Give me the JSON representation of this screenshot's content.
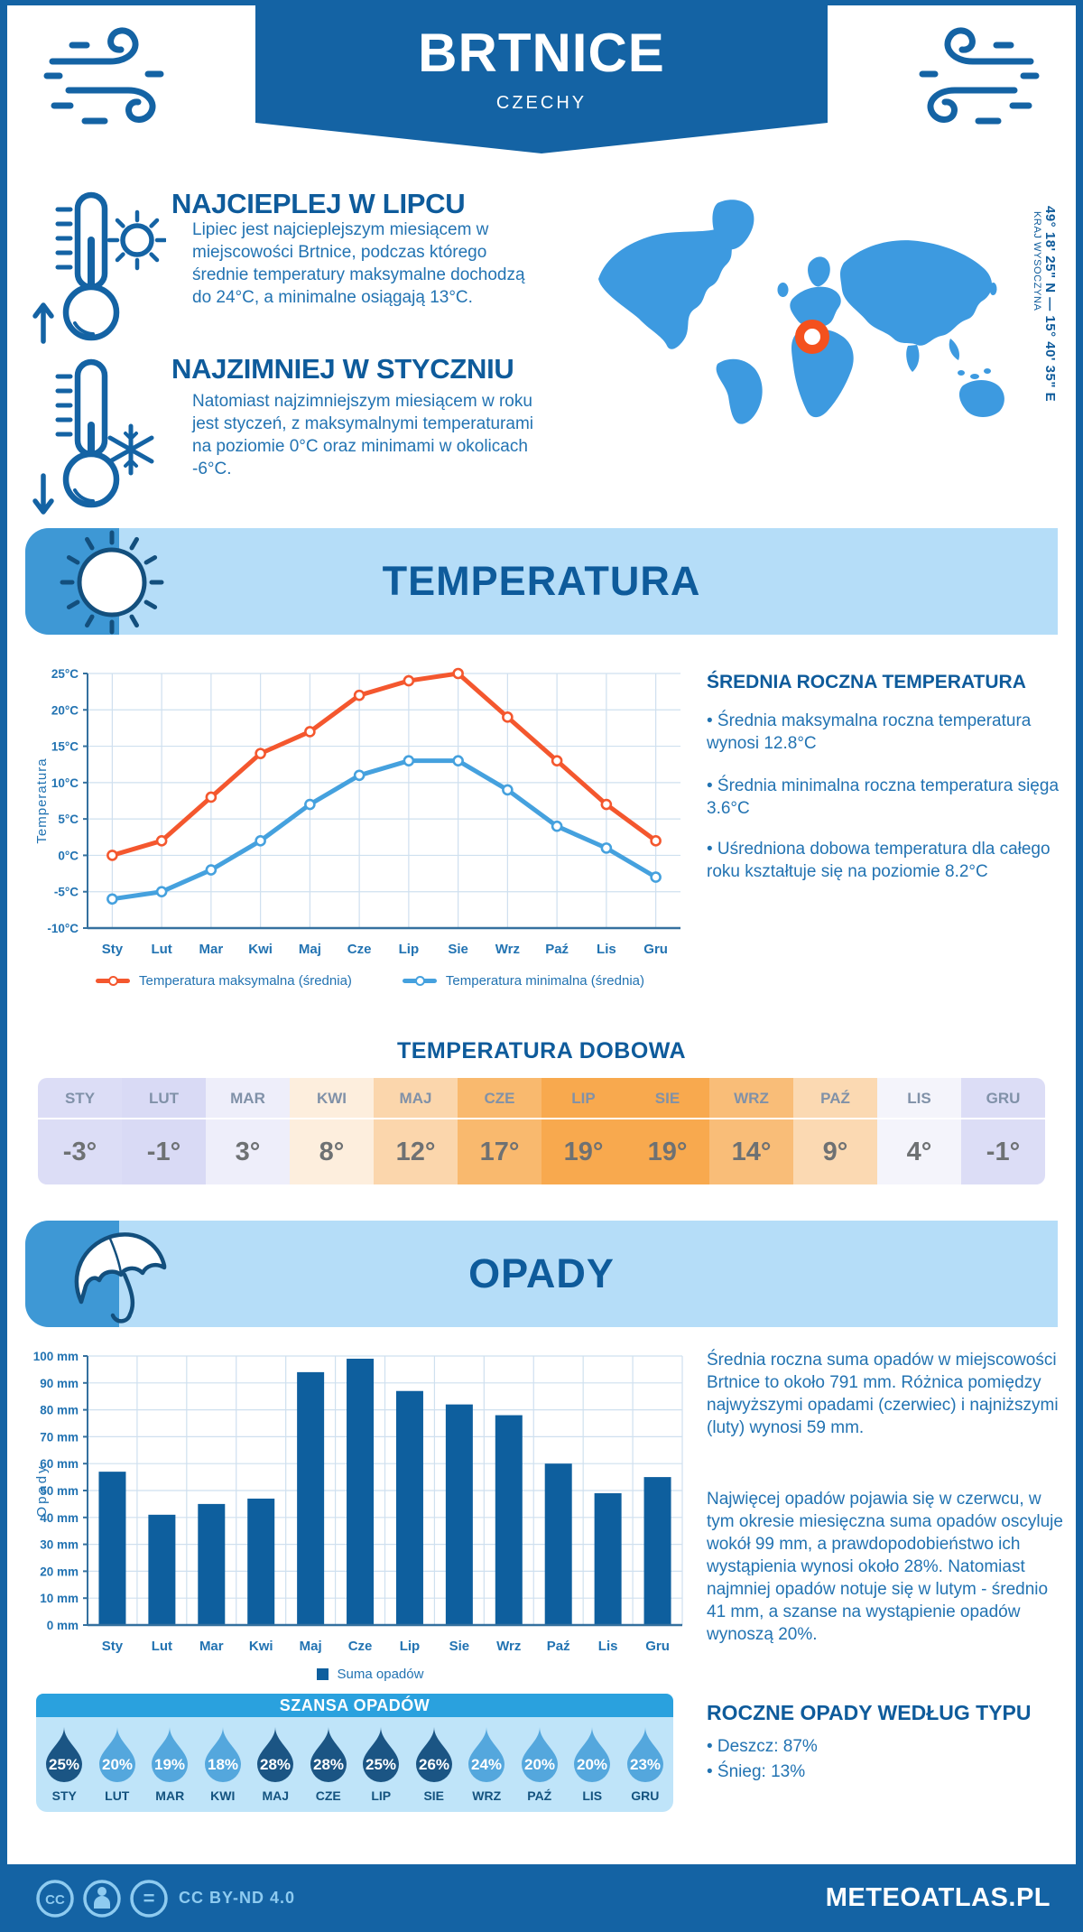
{
  "header": {
    "city": "BRTNICE",
    "country": "CZECHY",
    "coordinates": "49° 18' 25\" N — 15° 40' 35\" E",
    "region": "KRAJ WYSOCZYNA"
  },
  "warmest": {
    "title": "NAJCIEPLEJ W LIPCU",
    "text": "Lipiec jest najcieplejszym miesiącem w miejscowości Brtnice, podczas którego średnie temperatury maksymalne dochodzą do 24°C, a minimalne osiągają 13°C."
  },
  "coldest": {
    "title": "NAJZIMNIEJ W STYCZNIU",
    "text": "Natomiast najzimniejszym miesiącem w roku jest styczeń, z maksymalnymi temperaturami na poziomie 0°C oraz minimami w okolicach -6°C."
  },
  "temperature_section": {
    "banner": "TEMPERATURA",
    "panel_title": "ŚREDNIA ROCZNA TEMPERATURA",
    "bullets": [
      "• Średnia maksymalna roczna temperatura wynosi 12.8°C",
      "• Średnia minimalna roczna temperatura sięga 3.6°C",
      "• Uśredniona dobowa temperatura dla całego roku kształtuje się na poziomie 8.2°C"
    ],
    "daily_title": "TEMPERATURA DOBOWA"
  },
  "chart_data": [
    {
      "type": "line",
      "categories": [
        "Sty",
        "Lut",
        "Mar",
        "Kwi",
        "Maj",
        "Cze",
        "Lip",
        "Sie",
        "Wrz",
        "Paź",
        "Lis",
        "Gru"
      ],
      "series": [
        {
          "name": "Temperatura maksymalna (średnia)",
          "color": "#f4572e",
          "values": [
            0,
            2,
            8,
            14,
            17,
            22,
            24,
            25,
            19,
            13,
            7,
            2
          ]
        },
        {
          "name": "Temperatura minimalna (średnia)",
          "color": "#45a1de",
          "values": [
            -6,
            -5,
            -2,
            2,
            7,
            11,
            13,
            13,
            9,
            4,
            1,
            -3
          ]
        }
      ],
      "ylabel": "Temperatura",
      "ylim": [
        -10,
        25
      ],
      "ytick_step": 5,
      "ytick_suffix": "°C",
      "grid": true,
      "legend_position": "bottom"
    },
    {
      "type": "bar",
      "categories": [
        "Sty",
        "Lut",
        "Mar",
        "Kwi",
        "Maj",
        "Cze",
        "Lip",
        "Sie",
        "Wrz",
        "Paź",
        "Lis",
        "Gru"
      ],
      "values": [
        57,
        41,
        45,
        47,
        94,
        99,
        87,
        82,
        78,
        60,
        49,
        55
      ],
      "color": "#0e5f9e",
      "ylabel": "Opady",
      "ylim": [
        0,
        100
      ],
      "ytick_step": 10,
      "ytick_suffix": " mm",
      "legend": "Suma opadów",
      "grid": true,
      "legend_position": "bottom"
    }
  ],
  "daily_table": {
    "months": [
      "STY",
      "LUT",
      "MAR",
      "KWI",
      "MAJ",
      "CZE",
      "LIP",
      "SIE",
      "WRZ",
      "PAŹ",
      "LIS",
      "GRU"
    ],
    "values": [
      "-3°",
      "-1°",
      "3°",
      "8°",
      "12°",
      "17°",
      "19°",
      "19°",
      "14°",
      "9°",
      "4°",
      "-1°"
    ],
    "colors": [
      "#dcddf6",
      "#d9daf5",
      "#eeeefa",
      "#fdeedd",
      "#fbd6ac",
      "#f9b96e",
      "#f8a94e",
      "#f8a94e",
      "#f9bd78",
      "#fbd9b2",
      "#f4f4fb",
      "#dcddf6"
    ]
  },
  "precipitation_section": {
    "banner": "OPADY",
    "para1": "Średnia roczna suma opadów w miejscowości Brtnice to około 791 mm. Różnica pomiędzy najwyższymi opadami (czerwiec) i najniższymi (luty) wynosi 59 mm.",
    "para2": "Najwięcej opadów pojawia się w czerwcu, w tym okresie miesięczna suma opadów oscyluje wokół 99 mm, a prawdopodobieństwo ich wystąpienia wynosi około 28%. Natomiast najmniej opadów notuje się w lutym - średnio 41 mm, a szanse na wystąpienie opadów wynoszą 20%.",
    "type_title": "ROCZNE OPADY WEDŁUG TYPU",
    "type_bullets": [
      "• Deszcz: 87%",
      "• Śnieg: 13%"
    ]
  },
  "chance": {
    "title": "SZANSA OPADÓW",
    "months": [
      "STY",
      "LUT",
      "MAR",
      "KWI",
      "MAJ",
      "CZE",
      "LIP",
      "SIE",
      "WRZ",
      "PAŹ",
      "LIS",
      "GRU"
    ],
    "values": [
      "25%",
      "20%",
      "19%",
      "18%",
      "28%",
      "28%",
      "25%",
      "26%",
      "24%",
      "20%",
      "20%",
      "23%"
    ],
    "dark": [
      true,
      false,
      false,
      false,
      true,
      true,
      true,
      true,
      false,
      false,
      false,
      false
    ],
    "dark_color": "#1b5584",
    "light_color": "#54a7dd"
  },
  "footer": {
    "license": "CC BY-ND 4.0",
    "brand": "METEOATLAS.PL"
  },
  "colors": {
    "primary": "#1463a4",
    "heading": "#0e5b9b",
    "body_text": "#2273b2",
    "banner_light": "#b5ddf8",
    "banner_accent": "#3e98d5",
    "map": "#3d9ae0",
    "marker": "#f4511e",
    "grid": "#cfe0ef",
    "axis": "#35719f"
  }
}
